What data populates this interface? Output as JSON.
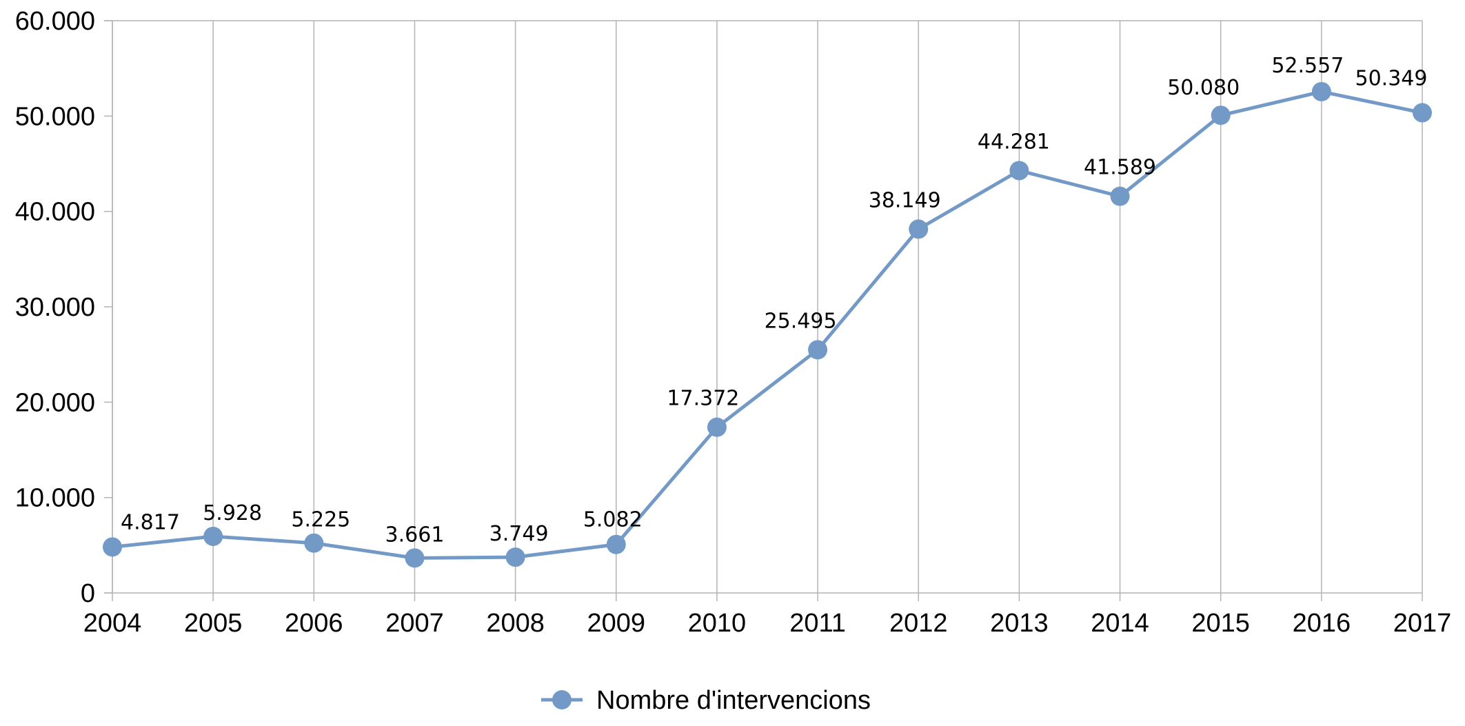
{
  "chart_data": {
    "type": "line",
    "title": "",
    "xlabel": "",
    "ylabel": "",
    "categories": [
      "2004",
      "2005",
      "2006",
      "2007",
      "2008",
      "2009",
      "2010",
      "2011",
      "2012",
      "2013",
      "2014",
      "2015",
      "2016",
      "2017"
    ],
    "series": [
      {
        "name": "Nombre d'intervencions",
        "values": [
          4817,
          5928,
          5225,
          3661,
          3749,
          5082,
          17372,
          25495,
          38149,
          44281,
          41589,
          50080,
          52557,
          50349
        ],
        "value_labels": [
          "4.817",
          "5.928",
          "5.225",
          "3.661",
          "3.749",
          "5.082",
          "17.372",
          "25.495",
          "38.149",
          "44.281",
          "41.589",
          "50.080",
          "52.557",
          "50.349"
        ],
        "color": "#7399c6"
      }
    ],
    "ylim": [
      0,
      60000
    ],
    "yticks": [
      0,
      10000,
      20000,
      30000,
      40000,
      50000,
      60000
    ],
    "ytick_labels": [
      "0",
      "10.000",
      "20.000",
      "30.000",
      "40.000",
      "50.000",
      "60.000"
    ],
    "grid": {
      "vertical": true,
      "horizontal": false,
      "color": "#b3b3b3"
    },
    "legend_position": "bottom-center"
  }
}
